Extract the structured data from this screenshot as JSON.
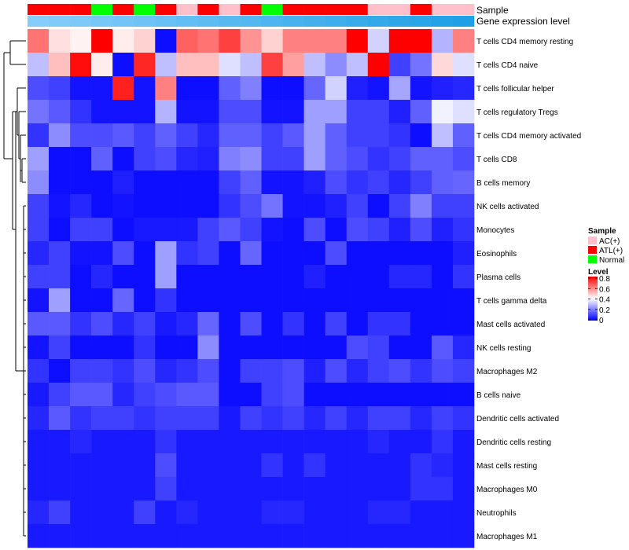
{
  "chart_data": {
    "type": "heatmap",
    "title": "",
    "annotation_tracks": {
      "sample_label": "Sample",
      "gene_expression_label": "Gene expression level"
    },
    "sample_annotation": [
      "ATL(+)",
      "ATL(+)",
      "ATL(+)",
      "Normal",
      "ATL(+)",
      "Normal",
      "ATL(+)",
      "AC(+)",
      "ATL(+)",
      "AC(+)",
      "ATL(+)",
      "Normal",
      "ATL(+)",
      "ATL(+)",
      "ATL(+)",
      "ATL(+)",
      "AC(+)",
      "AC(+)",
      "ATL(+)",
      "AC(+)",
      "AC(+)"
    ],
    "gene_expression_level": [
      0.02,
      0.06,
      0.1,
      0.15,
      0.2,
      0.25,
      0.3,
      0.35,
      0.4,
      0.45,
      0.5,
      0.55,
      0.6,
      0.65,
      0.7,
      0.75,
      0.8,
      0.85,
      0.9,
      0.95,
      1.0
    ],
    "rows": [
      "T cells CD4 memory resting",
      "T cells CD4 naive",
      "T cells follicular helper",
      "T cells regulatory  Tregs",
      "T cells CD4 memory activated",
      "T cells CD8",
      "B cells memory",
      "NK cells activated",
      "Monocytes",
      "Eosinophils",
      "Plasma cells",
      "T cells gamma delta",
      "Mast cells activated",
      "NK cells resting",
      "Macrophages M2",
      "B cells naive",
      "Dendritic cells activated",
      "Dendritic cells resting",
      "Mast cells resting",
      "Macrophages M0",
      "Neutrophils",
      "Macrophages M1"
    ],
    "values": [
      [
        0.62,
        0.45,
        0.42,
        0.8,
        0.43,
        0.47,
        0.02,
        0.65,
        0.62,
        0.7,
        0.57,
        0.47,
        0.6,
        0.6,
        0.6,
        0.8,
        0.33,
        0.8,
        0.8,
        0.28,
        0.6
      ],
      [
        0.3,
        0.5,
        0.78,
        0.43,
        0.02,
        0.74,
        0.3,
        0.5,
        0.5,
        0.35,
        0.3,
        0.7,
        0.55,
        0.3,
        0.22,
        0.3,
        0.8,
        0.1,
        0.18,
        0.46,
        0.35
      ],
      [
        0.12,
        0.1,
        0.03,
        0.03,
        0.75,
        0.03,
        0.6,
        0.02,
        0.02,
        0.15,
        0.2,
        0.02,
        0.02,
        0.16,
        0.33,
        0.05,
        0.03,
        0.26,
        0.03,
        0.05,
        0.06
      ],
      [
        0.18,
        0.14,
        0.08,
        0.03,
        0.03,
        0.03,
        0.28,
        0.03,
        0.03,
        0.12,
        0.12,
        0.03,
        0.03,
        0.25,
        0.25,
        0.1,
        0.1,
        0.05,
        0.15,
        0.38,
        0.35
      ],
      [
        0.08,
        0.22,
        0.12,
        0.12,
        0.14,
        0.1,
        0.15,
        0.1,
        0.06,
        0.15,
        0.15,
        0.1,
        0.14,
        0.25,
        0.15,
        0.1,
        0.1,
        0.08,
        0.02,
        0.3,
        0.15
      ],
      [
        0.25,
        0.02,
        0.02,
        0.15,
        0.02,
        0.1,
        0.12,
        0.06,
        0.05,
        0.2,
        0.22,
        0.1,
        0.1,
        0.25,
        0.15,
        0.12,
        0.08,
        0.1,
        0.15,
        0.15,
        0.12
      ],
      [
        0.22,
        0.02,
        0.02,
        0.02,
        0.05,
        0.02,
        0.02,
        0.02,
        0.02,
        0.1,
        0.15,
        0.03,
        0.03,
        0.05,
        0.12,
        0.08,
        0.1,
        0.06,
        0.1,
        0.15,
        0.16
      ],
      [
        0.1,
        0.03,
        0.06,
        0.02,
        0.03,
        0.02,
        0.02,
        0.02,
        0.02,
        0.08,
        0.12,
        0.18,
        0.03,
        0.03,
        0.05,
        0.1,
        0.02,
        0.1,
        0.2,
        0.1,
        0.1
      ],
      [
        0.1,
        0.02,
        0.1,
        0.1,
        0.02,
        0.04,
        0.04,
        0.04,
        0.1,
        0.14,
        0.1,
        0.03,
        0.02,
        0.12,
        0.02,
        0.12,
        0.1,
        0.05,
        0.12,
        0.05,
        0.08
      ],
      [
        0.06,
        0.1,
        0.03,
        0.03,
        0.12,
        0.02,
        0.25,
        0.08,
        0.1,
        0.02,
        0.16,
        0.02,
        0.02,
        0.02,
        0.12,
        0.02,
        0.02,
        0.02,
        0.02,
        0.02,
        0.05
      ],
      [
        0.1,
        0.1,
        0.02,
        0.06,
        0.02,
        0.02,
        0.25,
        0.02,
        0.02,
        0.02,
        0.02,
        0.02,
        0.02,
        0.05,
        0.02,
        0.02,
        0.02,
        0.06,
        0.06,
        0.02,
        0.08
      ],
      [
        0.03,
        0.25,
        0.02,
        0.02,
        0.16,
        0.02,
        0.08,
        0.02,
        0.02,
        0.02,
        0.02,
        0.02,
        0.02,
        0.02,
        0.02,
        0.02,
        0.02,
        0.02,
        0.02,
        0.02,
        0.02
      ],
      [
        0.14,
        0.14,
        0.08,
        0.12,
        0.06,
        0.1,
        0.04,
        0.06,
        0.16,
        0.02,
        0.12,
        0.02,
        0.08,
        0.02,
        0.1,
        0.02,
        0.08,
        0.08,
        0.02,
        0.02,
        0.02
      ],
      [
        0.03,
        0.1,
        0.02,
        0.02,
        0.02,
        0.08,
        0.02,
        0.02,
        0.22,
        0.02,
        0.02,
        0.02,
        0.02,
        0.02,
        0.02,
        0.12,
        0.1,
        0.02,
        0.02,
        0.14,
        0.06
      ],
      [
        0.08,
        0.02,
        0.1,
        0.1,
        0.08,
        0.12,
        0.06,
        0.08,
        0.12,
        0.02,
        0.1,
        0.1,
        0.12,
        0.05,
        0.12,
        0.06,
        0.1,
        0.12,
        0.08,
        0.12,
        0.1
      ],
      [
        0.04,
        0.1,
        0.14,
        0.14,
        0.06,
        0.1,
        0.12,
        0.14,
        0.14,
        0.02,
        0.02,
        0.1,
        0.12,
        0.02,
        0.02,
        0.02,
        0.02,
        0.02,
        0.02,
        0.02,
        0.02
      ],
      [
        0.06,
        0.14,
        0.08,
        0.1,
        0.1,
        0.08,
        0.1,
        0.1,
        0.1,
        0.04,
        0.1,
        0.08,
        0.1,
        0.06,
        0.1,
        0.06,
        0.1,
        0.1,
        0.06,
        0.1,
        0.08
      ],
      [
        0.04,
        0.04,
        0.06,
        0.04,
        0.04,
        0.04,
        0.08,
        0.04,
        0.04,
        0.04,
        0.04,
        0.04,
        0.04,
        0.04,
        0.04,
        0.04,
        0.06,
        0.04,
        0.04,
        0.08,
        0.04
      ],
      [
        0.04,
        0.04,
        0.04,
        0.04,
        0.04,
        0.04,
        0.12,
        0.04,
        0.04,
        0.04,
        0.04,
        0.08,
        0.04,
        0.08,
        0.04,
        0.04,
        0.04,
        0.04,
        0.08,
        0.06,
        0.04
      ],
      [
        0.04,
        0.04,
        0.04,
        0.04,
        0.04,
        0.04,
        0.1,
        0.04,
        0.04,
        0.04,
        0.04,
        0.04,
        0.04,
        0.04,
        0.04,
        0.04,
        0.04,
        0.04,
        0.08,
        0.08,
        0.04
      ],
      [
        0.06,
        0.1,
        0.04,
        0.04,
        0.04,
        0.1,
        0.04,
        0.06,
        0.04,
        0.04,
        0.04,
        0.06,
        0.06,
        0.04,
        0.04,
        0.04,
        0.06,
        0.06,
        0.04,
        0.04,
        0.04
      ],
      [
        0.04,
        0.04,
        0.04,
        0.04,
        0.04,
        0.04,
        0.04,
        0.04,
        0.04,
        0.04,
        0.04,
        0.04,
        0.04,
        0.04,
        0.04,
        0.04,
        0.04,
        0.04,
        0.04,
        0.04,
        0.04
      ]
    ],
    "legend": {
      "sample_title": "Sample",
      "sample_entries": [
        {
          "label": "AC(+)",
          "color": "#ffc0cb"
        },
        {
          "label": "ATL(+)",
          "color": "#ff0000"
        },
        {
          "label": "Normal",
          "color": "#00ff00"
        }
      ],
      "level_title": "Level",
      "level_ticks": [
        "0.8",
        "0.6",
        "0.4",
        "0.2",
        "0"
      ],
      "level_range": [
        0,
        0.8
      ]
    },
    "colors": {
      "low": "#0000ff",
      "mid": "#ffffff",
      "high": "#ff0000",
      "expression_low": "#87cefa",
      "expression_high": "#1ea0e6"
    },
    "dendrogram": "row clustering tree on left"
  }
}
